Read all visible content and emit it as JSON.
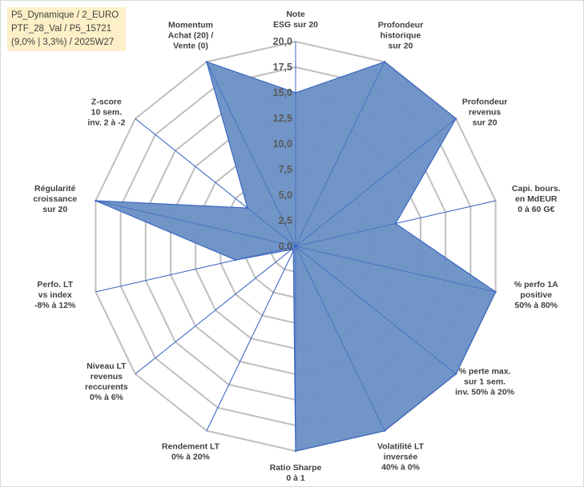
{
  "info_box": {
    "line1": "P5_Dynamique / 2_EURO",
    "line2": "PTF_28_Val / P5_15721",
    "line3": "(9,0% | 3,3%) / 2025W27"
  },
  "colors": {
    "fill": "#6a8fc4",
    "line": "#3a66c4",
    "grid": "#bfbfbf",
    "spoke": "#3a66c4",
    "text": "#404040",
    "info_bg": "#fdf0c8"
  },
  "chart_data": {
    "type": "radar",
    "rmin": 0,
    "rmax": 20,
    "ticks": [
      "0,0",
      "2,5",
      "5,0",
      "7,5",
      "10,0",
      "12,5",
      "15,0",
      "17,5",
      "20,0"
    ],
    "tick_values": [
      0,
      2.5,
      5,
      7.5,
      10,
      12.5,
      15,
      17.5,
      20
    ],
    "axes": [
      {
        "label": [
          "Note",
          "ESG sur 20"
        ],
        "value": 15.0
      },
      {
        "label": [
          "Profondeur",
          "historique",
          "sur 20"
        ],
        "value": 20.0
      },
      {
        "label": [
          "Profondeur",
          "revenus",
          "sur 20"
        ],
        "value": 20.0
      },
      {
        "label": [
          "Capi. bours.",
          "en MdEUR",
          "0 à 60 G€"
        ],
        "value": 10.0
      },
      {
        "label": [
          "% perfo 1A",
          "positive",
          "50% à 80%"
        ],
        "value": 20.0
      },
      {
        "label": [
          "% perte max.",
          "sur 1 sem.",
          "inv. 50% à 20%"
        ],
        "value": 20.0
      },
      {
        "label": [
          "Volatilité LT",
          "inversée",
          "40% à 0%"
        ],
        "value": 20.0
      },
      {
        "label": [
          "Ratio Sharpe",
          "0 à 1"
        ],
        "value": 20.0
      },
      {
        "label": [
          "Rendement LT",
          "0% à 20%"
        ],
        "value": 0.5
      },
      {
        "label": [
          "Niveau LT",
          "revenus",
          "reccurents",
          "0% à 6%"
        ],
        "value": 0.5
      },
      {
        "label": [
          "Perfo. LT",
          "vs index",
          "-8% à 12%"
        ],
        "value": 6.0
      },
      {
        "label": [
          "Régularité",
          "croissance",
          "sur 20"
        ],
        "value": 20.0
      },
      {
        "label": [
          "Z-score",
          "10 sem.",
          "inv. 2 à -2"
        ],
        "value": 6.0
      },
      {
        "label": [
          "Momentum",
          "Achat (20) /",
          "Vente (0)"
        ],
        "value": 20.0
      }
    ]
  }
}
